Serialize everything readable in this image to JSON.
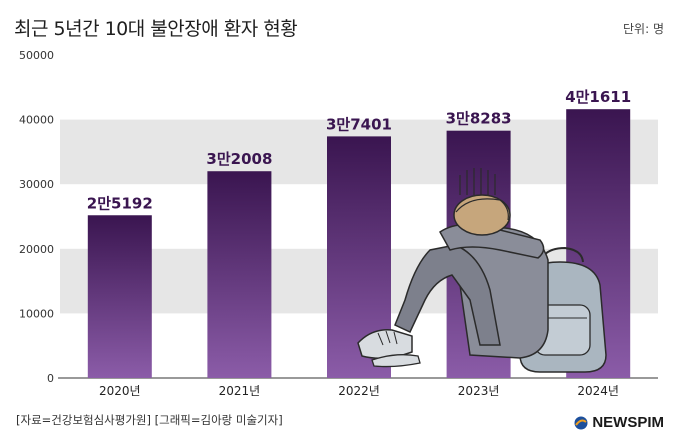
{
  "title": "최근 5년간 10대 불안장애 환자 현황",
  "unit_label": "단위: 명",
  "source_text": "[자료=건강보험심사평가원] [그래픽=김아랑 미술기자]",
  "brand": "NEWSPIM",
  "colors": {
    "bar_top": "#3a1550",
    "bar_bottom": "#8b5ca8",
    "band": "#e6e6e6",
    "label": "#3a1550",
    "accent": "#f0a020"
  },
  "chart_data": {
    "type": "bar",
    "title": "최근 5년간 10대 불안장애 환자 현황",
    "categories": [
      "2020년",
      "2021년",
      "2022년",
      "2023년",
      "2024년"
    ],
    "values": [
      25192,
      32008,
      37401,
      38283,
      41611
    ],
    "data_labels": [
      "2만5192",
      "3만2008",
      "3만7401",
      "3만8283",
      "4만1611"
    ],
    "ylim": [
      0,
      50000
    ],
    "yticks": [
      0,
      10000,
      20000,
      30000,
      40000,
      50000
    ],
    "ytick_labels": [
      "0",
      "10000",
      "20000",
      "30000",
      "40000",
      "50000"
    ],
    "grid": "alternating horizontal bands"
  }
}
